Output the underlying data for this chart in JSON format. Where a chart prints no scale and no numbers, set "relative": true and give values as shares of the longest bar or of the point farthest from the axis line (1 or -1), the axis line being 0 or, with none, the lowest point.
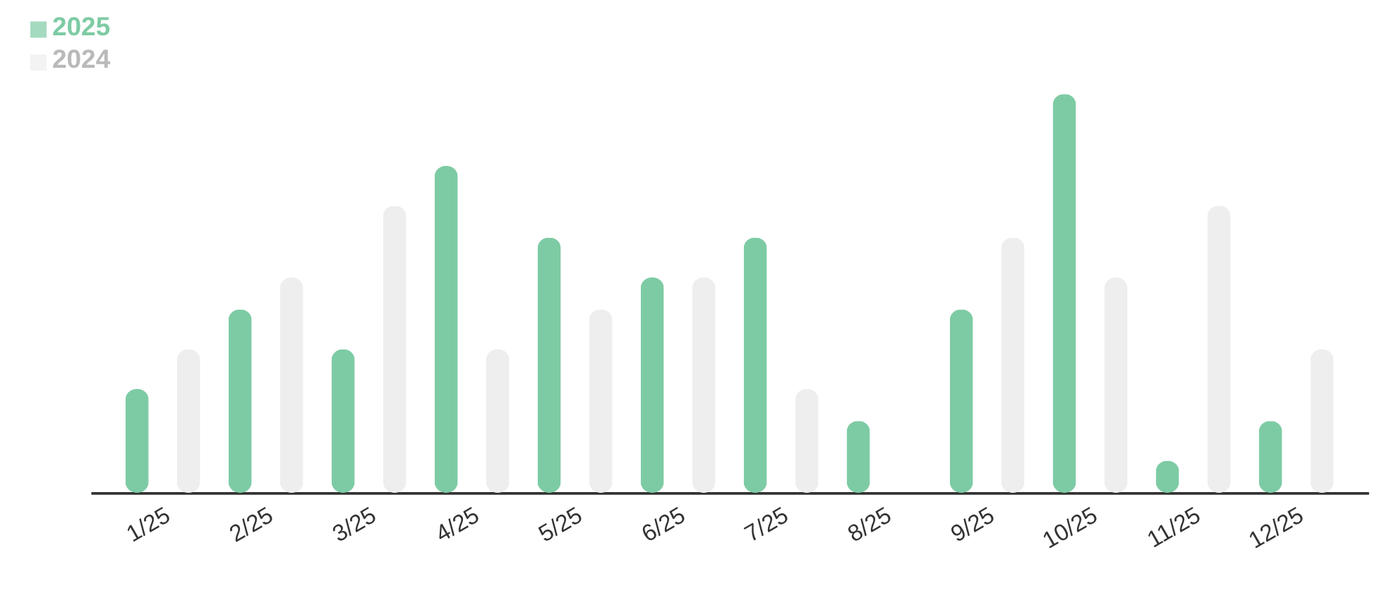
{
  "chart_data": {
    "type": "bar",
    "relative": true,
    "legend": "top left",
    "grid": false,
    "categories": [
      "1/25",
      "2/25",
      "3/25",
      "4/25",
      "5/25",
      "6/25",
      "7/25",
      "8/25",
      "9/25",
      "10/25",
      "11/25",
      "12/25"
    ],
    "series": [
      {
        "name": "2025",
        "color": "#7dcba4",
        "values": [
          0.26,
          0.46,
          0.36,
          0.82,
          0.64,
          0.54,
          0.64,
          0.18,
          0.46,
          1,
          0.08,
          0.18
        ]
      },
      {
        "name": "2024",
        "color": "#eeeeee",
        "values": [
          0.36,
          0.54,
          0.72,
          0.36,
          0.46,
          0.54,
          0.26,
          null,
          0.64,
          0.54,
          0.72,
          0.36
        ]
      }
    ]
  }
}
